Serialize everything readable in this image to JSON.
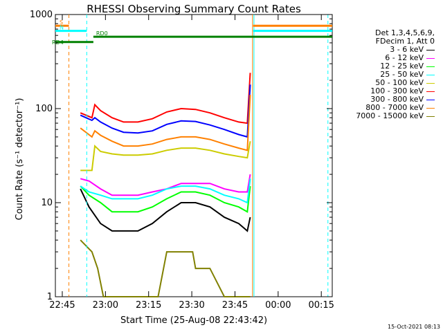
{
  "chart_data": {
    "type": "line",
    "title": "RHESSI Observing Summary Count Rates",
    "xlabel": "Start Time (25-Aug-08 22:43:42)",
    "ylabel": "Count Rate (s⁻¹ detector⁻¹)",
    "ylog": true,
    "ylim": [
      1,
      1000
    ],
    "xlim_minutes": [
      -3.7,
      92.5
    ],
    "x_ticks": [
      "22:45",
      "23:00",
      "23:15",
      "23:30",
      "23:45",
      "00:00",
      "00:15"
    ],
    "y_ticks": [
      "1",
      "10",
      "100",
      "1000"
    ],
    "legend_header": [
      "Det 1,3,4,5,6,9,",
      "FDecim 1, Att 0"
    ],
    "footer_date": "15-Oct-2021 08:13",
    "series": [
      {
        "name": "3 - 6 keV",
        "color": "#000000",
        "x": [
          5,
          8,
          12,
          16,
          20,
          25,
          30,
          35,
          40,
          45,
          50,
          55,
          60,
          63,
          64
        ],
        "y": [
          14,
          9,
          6,
          5,
          5,
          5,
          6,
          8,
          10,
          10,
          9,
          7,
          6,
          5,
          7
        ]
      },
      {
        "name": "6 - 12 keV",
        "color": "#ff00ff",
        "x": [
          5,
          8,
          12,
          16,
          20,
          25,
          30,
          35,
          40,
          45,
          50,
          55,
          60,
          63,
          64
        ],
        "y": [
          18,
          17,
          14,
          12,
          12,
          12,
          13,
          14,
          16,
          16,
          16,
          14,
          13,
          13,
          20
        ]
      },
      {
        "name": "12 - 25 keV",
        "color": "#00ff00",
        "x": [
          5,
          8,
          12,
          16,
          20,
          25,
          30,
          35,
          40,
          45,
          50,
          55,
          60,
          63,
          64
        ],
        "y": [
          15,
          12,
          10,
          8,
          8,
          8,
          9,
          11,
          13,
          13,
          12,
          10,
          9,
          8,
          15
        ]
      },
      {
        "name": "25 - 50 keV",
        "color": "#00ffff",
        "x": [
          5,
          8,
          12,
          16,
          20,
          25,
          30,
          35,
          40,
          45,
          50,
          55,
          60,
          63,
          64
        ],
        "y": [
          15,
          13,
          12,
          11,
          11,
          11,
          12,
          14,
          15,
          15,
          14,
          12,
          11,
          10,
          18
        ]
      },
      {
        "name": "50 - 100 keV",
        "color": "#cccc00",
        "x": [
          5,
          9,
          10,
          12,
          16,
          20,
          25,
          30,
          35,
          40,
          45,
          50,
          55,
          60,
          63,
          64
        ],
        "y": [
          22,
          22,
          40,
          35,
          33,
          32,
          32,
          33,
          36,
          38,
          38,
          36,
          33,
          31,
          30,
          45
        ]
      },
      {
        "name": "100 - 300 keV",
        "color": "#ff0000",
        "x": [
          5,
          9,
          10,
          12,
          16,
          20,
          25,
          30,
          35,
          40,
          45,
          50,
          55,
          60,
          63,
          64
        ],
        "y": [
          90,
          80,
          110,
          95,
          80,
          72,
          72,
          78,
          92,
          100,
          98,
          90,
          80,
          72,
          70,
          240
        ]
      },
      {
        "name": "300 - 800 keV",
        "color": "#0000ff",
        "x": [
          5,
          9,
          10,
          12,
          16,
          20,
          25,
          30,
          35,
          40,
          45,
          50,
          55,
          60,
          63,
          64
        ],
        "y": [
          85,
          75,
          80,
          72,
          62,
          56,
          55,
          58,
          68,
          74,
          73,
          67,
          60,
          53,
          50,
          180
        ]
      },
      {
        "name": "800 - 7000 keV",
        "color": "#ff8000",
        "x": [
          5,
          9,
          10,
          12,
          16,
          20,
          25,
          30,
          35,
          40,
          45,
          50,
          55,
          60,
          63,
          64
        ],
        "y": [
          62,
          50,
          58,
          52,
          45,
          40,
          40,
          42,
          47,
          50,
          50,
          47,
          42,
          38,
          36,
          140
        ]
      },
      {
        "name": "7000 - 15000 keV",
        "color": "#808000",
        "x": [
          5,
          9,
          11,
          13,
          16,
          20,
          25,
          32,
          35,
          40,
          44,
          45,
          50,
          55,
          60,
          63,
          64
        ],
        "y": [
          4,
          3,
          2,
          1,
          1,
          1,
          1,
          1,
          3,
          3,
          3,
          2,
          2,
          1,
          1,
          1,
          1
        ]
      }
    ],
    "flags": [
      {
        "name": "S",
        "color": "#ff8000",
        "level": 760,
        "segments": [
          [
            -3.7,
            1
          ],
          [
            65,
            92.5
          ]
        ]
      },
      {
        "name": "N",
        "color": "#00ffff",
        "level": 670,
        "segments": [
          [
            -3.7,
            7.2
          ],
          [
            65,
            92.5
          ]
        ]
      },
      {
        "name": "RD0",
        "color": "#008000",
        "level": 580,
        "segments": [
          [
            9.5,
            92.5
          ]
        ]
      },
      {
        "name": "RD4",
        "color": "#008000",
        "level": 510,
        "segments": [
          [
            -3.7,
            9.5
          ]
        ]
      }
    ],
    "markers": [
      {
        "color": "#ff8000",
        "style": "dashed",
        "x": 1
      },
      {
        "color": "#00ffff",
        "style": "dashed",
        "x": 7.2
      },
      {
        "color": "#00ffff",
        "style": "dashed",
        "x": 91
      },
      {
        "color": "#00ffff",
        "style": "solid",
        "x": 65.3
      },
      {
        "color": "#ff8000",
        "style": "solid",
        "x": 64.8
      }
    ]
  }
}
